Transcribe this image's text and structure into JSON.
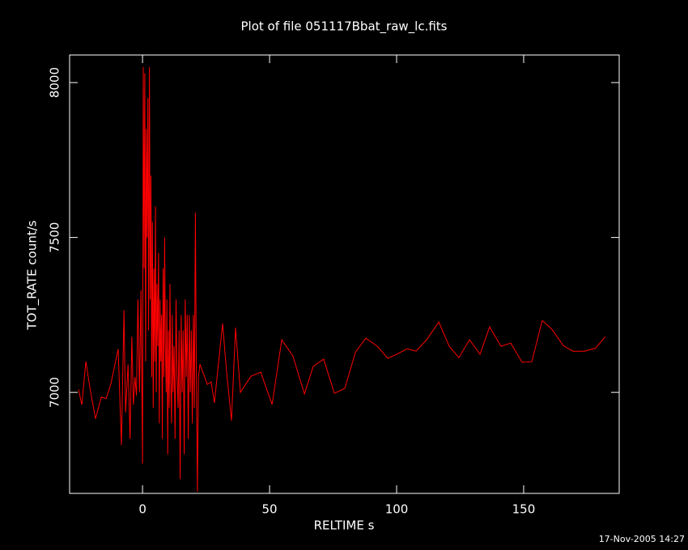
{
  "chart_data": {
    "type": "line",
    "title": "Plot of file 051117Bbat_raw_lc.fits",
    "xlabel": "RELTIME  s",
    "ylabel": "TOT_RATE  count/s",
    "footer": "17-Nov-2005 14:27",
    "color": "#ff0000",
    "xlim": [
      -28.7,
      187.6
    ],
    "xticks": [
      0,
      50,
      100,
      150
    ],
    "ylim": [
      6674,
      8089
    ],
    "yticks": [
      7000,
      7500,
      8000
    ],
    "x": [
      -25.2,
      -23.9,
      -22.3,
      -20.7,
      -18.5,
      -16.2,
      -14.3,
      -12.4,
      -9.6,
      -8.3,
      -7.3,
      -6.7,
      -5.7,
      -4.9,
      -4.2,
      -3.6,
      -3.0,
      -2.4,
      -1.8,
      -1.2,
      -0.6,
      0.0,
      0.3,
      0.6,
      0.9,
      1.2,
      1.5,
      1.8,
      2.1,
      2.4,
      2.7,
      3.0,
      3.3,
      3.6,
      3.9,
      4.2,
      4.5,
      4.8,
      5.1,
      5.4,
      5.7,
      6.0,
      6.3,
      6.6,
      6.9,
      7.2,
      7.5,
      7.8,
      8.1,
      8.4,
      8.7,
      9.0,
      9.3,
      9.6,
      9.9,
      10.2,
      10.5,
      10.8,
      11.1,
      11.4,
      11.7,
      12.0,
      12.4,
      12.8,
      13.2,
      13.6,
      14.0,
      14.4,
      14.8,
      15.2,
      15.6,
      16.0,
      16.4,
      16.8,
      17.2,
      17.6,
      18.0,
      18.4,
      18.8,
      19.2,
      19.6,
      20.0,
      20.4,
      20.8,
      21.2,
      21.6,
      22.0,
      22.6,
      25.5,
      27.0,
      28.3,
      31.5,
      33.1,
      35.0,
      36.6,
      38.5,
      42.7,
      46.5,
      51.0,
      54.8,
      59.2,
      63.7,
      67.2,
      71.3,
      75.5,
      79.6,
      83.8,
      87.9,
      92.4,
      96.5,
      100.6,
      104.1,
      107.6,
      111.8,
      116.6,
      120.7,
      124.5,
      128.7,
      132.8,
      136.6,
      141.1,
      144.9,
      149.4,
      153.2,
      157.3,
      161.1,
      165.6,
      169.4,
      173.9,
      178.3,
      182.2
    ],
    "values": [
      7010,
      6960,
      7100,
      7015,
      6915,
      6985,
      6980,
      7030,
      7140,
      6830,
      7265,
      6935,
      7090,
      6850,
      7180,
      6960,
      7050,
      6990,
      7300,
      7000,
      7330,
      6770,
      8050,
      7400,
      8030,
      7100,
      7850,
      7500,
      7950,
      7200,
      8050,
      7300,
      7700,
      7050,
      7550,
      6950,
      7400,
      7100,
      7600,
      7000,
      7350,
      7150,
      7450,
      6900,
      7300,
      7100,
      7250,
      6850,
      7400,
      7050,
      7500,
      7150,
      7000,
      7300,
      6800,
      7200,
      6950,
      7350,
      7050,
      6900,
      7250,
      7000,
      7150,
      6850,
      7300,
      7050,
      6950,
      7200,
      6720,
      7250,
      7000,
      7200,
      6800,
      7300,
      7050,
      7250,
      6850,
      7250,
      7000,
      7200,
      6900,
      7250,
      6950,
      7580,
      7050,
      6680,
      7050,
      7091,
      7026,
      7034,
      6966,
      7222,
      7065,
      6909,
      7209,
      7000,
      7052,
      7065,
      6961,
      7170,
      7117,
      6995,
      7084,
      7107,
      6997,
      7013,
      7130,
      7175,
      7149,
      7110,
      7125,
      7141,
      7133,
      7170,
      7227,
      7149,
      7112,
      7170,
      7123,
      7211,
      7149,
      7159,
      7097,
      7099,
      7232,
      7204,
      7151,
      7133,
      7133,
      7143,
      7180
    ]
  }
}
